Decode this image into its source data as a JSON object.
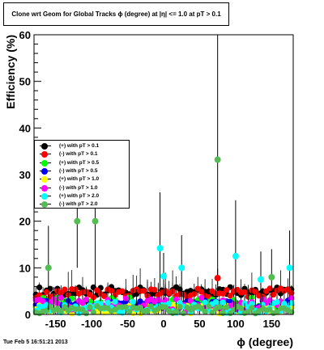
{
  "chart_data": {
    "type": "scatter",
    "title": "Clone wrt Geom for Global Tracks  ϕ (degree) at |η| <= 1.0 at pT > 0.1",
    "xlabel": "ϕ (degree)",
    "ylabel": "Efficiency (%)",
    "xlim": [
      -180,
      180
    ],
    "ylim": [
      0,
      60
    ],
    "x_ticks": [
      "-150",
      "-100",
      "-50",
      "0",
      "50",
      "100",
      "150"
    ],
    "x_tick_values": [
      -150,
      -100,
      -50,
      0,
      50,
      100,
      150
    ],
    "y_ticks": [
      "0",
      "10",
      "20",
      "30",
      "40",
      "50",
      "60"
    ],
    "y_tick_values": [
      0,
      10,
      20,
      30,
      40,
      50,
      60
    ],
    "grid": false,
    "legend_position": "left-middle",
    "series": [
      {
        "name": "(+) with pT > 0.1",
        "color": "#000000",
        "base": 5.0,
        "amp": 0.9
      },
      {
        "name": "(-) with pT > 0.1",
        "color": "#ff0000",
        "base": 4.6,
        "amp": 1.0
      },
      {
        "name": "(+) with pT > 0.5",
        "color": "#00ff00",
        "base": 2.5,
        "amp": 1.2
      },
      {
        "name": "(-) with pT > 0.5",
        "color": "#0000ff",
        "base": 2.0,
        "amp": 1.0
      },
      {
        "name": "(+) with pT > 1.0",
        "color": "#ffff00",
        "base": 1.2,
        "amp": 1.0
      },
      {
        "name": "(-) with pT > 1.0",
        "color": "#ff00ff",
        "base": 2.2,
        "amp": 1.4
      },
      {
        "name": "(+) with pT > 2.0",
        "color": "#00ffff",
        "base": 1.5,
        "amp": 1.2
      },
      {
        "name": "(-) with pT > 2.0",
        "color": "#55bb55",
        "base": 1.0,
        "amp": 0.8
      }
    ],
    "highlights": [
      {
        "series": 7,
        "x": 75,
        "y": 33.2,
        "err": 27
      },
      {
        "series": 7,
        "x": -120,
        "y": 20.0,
        "err": 10
      },
      {
        "series": 7,
        "x": -95,
        "y": 20.0,
        "err": 14
      },
      {
        "series": 7,
        "x": -160,
        "y": 10.0,
        "err": 9
      },
      {
        "series": 6,
        "x": -5,
        "y": 14.2,
        "err": 12
      },
      {
        "series": 6,
        "x": 100,
        "y": 12.5,
        "err": 12
      },
      {
        "series": 6,
        "x": 25,
        "y": 10.0,
        "err": 7
      },
      {
        "series": 6,
        "x": 175,
        "y": 10.0,
        "err": 8
      },
      {
        "series": 6,
        "x": 0,
        "y": 8.2,
        "err": 5
      },
      {
        "series": 6,
        "x": 135,
        "y": 7.5,
        "err": 6
      },
      {
        "series": 7,
        "x": 150,
        "y": 8.0,
        "err": 6
      },
      {
        "series": 1,
        "x": 75,
        "y": 7.8,
        "err": 2
      }
    ]
  },
  "footer": {
    "date": "Tue Feb  5 16:51:21 2013"
  }
}
